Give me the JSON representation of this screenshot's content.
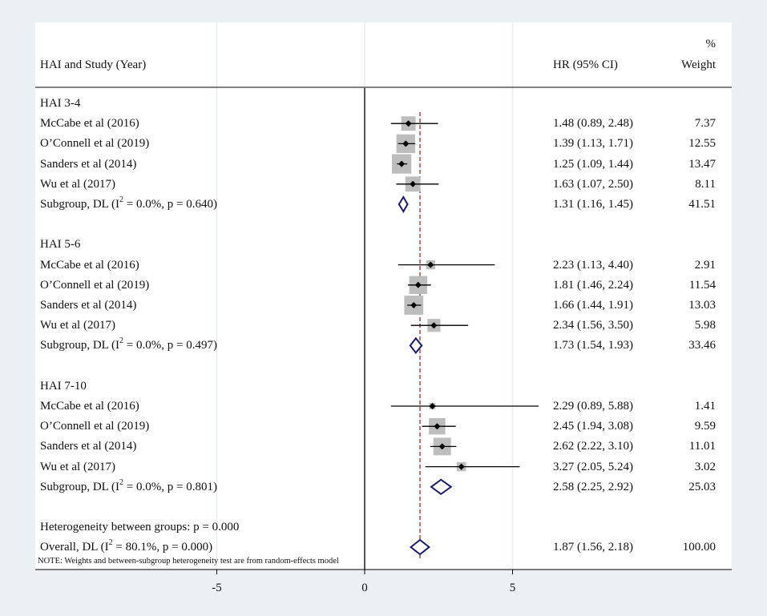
{
  "chart_data": {
    "type": "forest",
    "header": {
      "study_col": "HAI and Study (Year)",
      "hr_col": "HR (95% CI)",
      "weight_col_top": "%",
      "weight_col": "Weight"
    },
    "xaxis": {
      "ticks": [
        -5,
        0,
        5
      ],
      "tick_labels": [
        "-5",
        "0",
        "5"
      ],
      "range": [
        -10,
        12
      ]
    },
    "null_line": 0,
    "overall_line": 1.87,
    "groups": [
      {
        "name": "HAI 3-4",
        "studies": [
          {
            "label": "McCabe et al  (2016)",
            "hr": 1.48,
            "lo": 0.89,
            "hi": 2.48,
            "ci_text": "1.48 (0.89, 2.48)",
            "weight": 7.37,
            "weight_text": "7.37"
          },
          {
            "label": "O’Connell et al  (2019)",
            "hr": 1.39,
            "lo": 1.13,
            "hi": 1.71,
            "ci_text": "1.39 (1.13, 1.71)",
            "weight": 12.55,
            "weight_text": "12.55"
          },
          {
            "label": "Sanders et al  (2014)",
            "hr": 1.25,
            "lo": 1.09,
            "hi": 1.44,
            "ci_text": "1.25 (1.09, 1.44)",
            "weight": 13.47,
            "weight_text": "13.47"
          },
          {
            "label": "Wu et al  (2017)",
            "hr": 1.63,
            "lo": 1.07,
            "hi": 2.5,
            "ci_text": "1.63 (1.07, 2.50)",
            "weight": 8.11,
            "weight_text": "8.11"
          }
        ],
        "subgroup": {
          "label_pre": "Subgroup, DL  (I",
          "sup": "2",
          "label_post": " = 0.0%, p = 0.640)",
          "hr": 1.31,
          "lo": 1.16,
          "hi": 1.45,
          "ci_text": "1.31 (1.16, 1.45)",
          "weight_text": "41.51"
        }
      },
      {
        "name": "HAI 5-6",
        "studies": [
          {
            "label": "McCabe et al  (2016)",
            "hr": 2.23,
            "lo": 1.13,
            "hi": 4.4,
            "ci_text": "2.23 (1.13, 4.40)",
            "weight": 2.91,
            "weight_text": "2.91"
          },
          {
            "label": "O’Connell et al  (2019)",
            "hr": 1.81,
            "lo": 1.46,
            "hi": 2.24,
            "ci_text": "1.81 (1.46, 2.24)",
            "weight": 11.54,
            "weight_text": "11.54"
          },
          {
            "label": "Sanders et al  (2014)",
            "hr": 1.66,
            "lo": 1.44,
            "hi": 1.91,
            "ci_text": "1.66 (1.44, 1.91)",
            "weight": 13.03,
            "weight_text": "13.03"
          },
          {
            "label": "Wu et al  (2017)",
            "hr": 2.34,
            "lo": 1.56,
            "hi": 3.5,
            "ci_text": "2.34 (1.56, 3.50)",
            "weight": 5.98,
            "weight_text": "5.98"
          }
        ],
        "subgroup": {
          "label_pre": "Subgroup, DL  (I",
          "sup": "2",
          "label_post": " = 0.0%, p = 0.497)",
          "hr": 1.73,
          "lo": 1.54,
          "hi": 1.93,
          "ci_text": "1.73 (1.54, 1.93)",
          "weight_text": "33.46"
        }
      },
      {
        "name": "HAI 7-10",
        "studies": [
          {
            "label": "McCabe et al  (2016)",
            "hr": 2.29,
            "lo": 0.89,
            "hi": 5.88,
            "ci_text": "2.29 (0.89, 5.88)",
            "weight": 1.41,
            "weight_text": "1.41"
          },
          {
            "label": "O’Connell et al  (2019)",
            "hr": 2.45,
            "lo": 1.94,
            "hi": 3.08,
            "ci_text": "2.45 (1.94, 3.08)",
            "weight": 9.59,
            "weight_text": "9.59"
          },
          {
            "label": "Sanders et al  (2014)",
            "hr": 2.62,
            "lo": 2.22,
            "hi": 3.1,
            "ci_text": "2.62 (2.22, 3.10)",
            "weight": 11.01,
            "weight_text": "11.01"
          },
          {
            "label": "Wu et al  (2017)",
            "hr": 3.27,
            "lo": 2.05,
            "hi": 5.24,
            "ci_text": "3.27 (2.05, 5.24)",
            "weight": 3.02,
            "weight_text": "3.02"
          }
        ],
        "subgroup": {
          "label_pre": "Subgroup, DL  (I",
          "sup": "2",
          "label_post": " = 0.0%, p = 0.801)",
          "hr": 2.58,
          "lo": 2.25,
          "hi": 2.92,
          "ci_text": "2.58 (2.25, 2.92)",
          "weight_text": "25.03"
        }
      }
    ],
    "heterogeneity_between": "Heterogeneity between groups: p = 0.000",
    "overall": {
      "label_pre": "Overall, DL  (I",
      "sup": "2",
      "label_post": " = 80.1%, p = 0.000)",
      "hr": 1.87,
      "lo": 1.56,
      "hi": 2.18,
      "ci_text": "1.87 (1.56, 2.18)",
      "weight_text": "100.00"
    },
    "note": "NOTE: Weights and between-subgroup heterogeneity test are from random-effects model",
    "colors": {
      "background": "#eaf0f4",
      "panel": "#ffffff",
      "marker_box": "#bdbdbd",
      "diamond": "#1a1a6e",
      "overall_line": "#8b1a1a",
      "ci_line": "#000000",
      "grid": "#e6ecf0"
    }
  }
}
